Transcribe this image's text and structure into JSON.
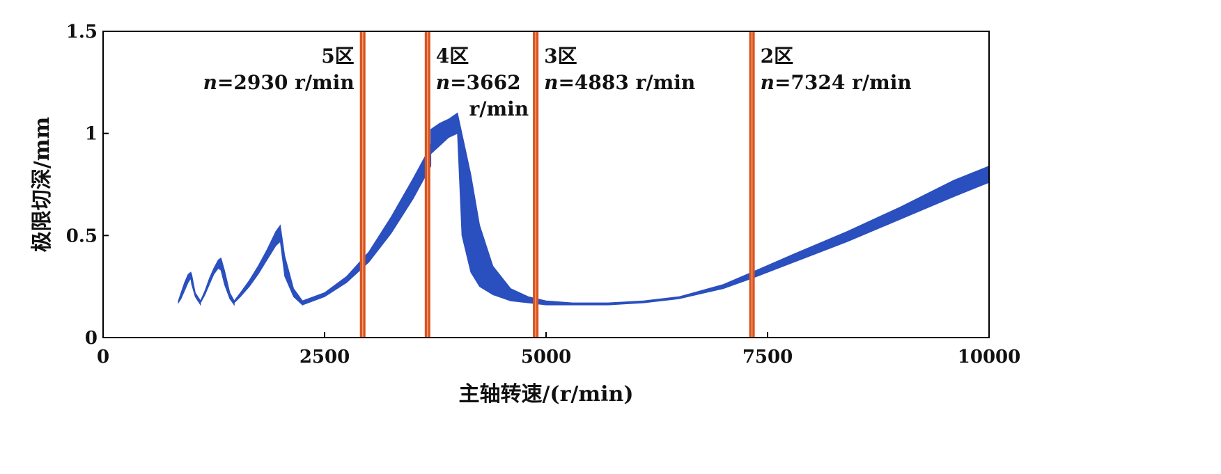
{
  "chart_data": {
    "type": "area",
    "xlabel": "主轴转速/(r/min)",
    "ylabel": "极限切深/mm",
    "xlim": [
      0,
      10000
    ],
    "ylim": [
      0,
      1.5
    ],
    "xticks": [
      0,
      2500,
      5000,
      7500,
      10000
    ],
    "xtick_labels": [
      "0",
      "2500",
      "5000",
      "7500",
      "10000"
    ],
    "yticks": [
      0,
      0.5,
      1,
      1.5
    ],
    "ytick_labels": [
      "0",
      "0.5",
      "1",
      "1.5"
    ],
    "grid": false,
    "band_color": "#2a4fbf",
    "line_color": "#d9531e",
    "series": [
      {
        "type": "band",
        "lobes": [
          {
            "x": [
              850,
              880,
              920,
              960,
              990,
              1000,
              1040,
              1100
            ],
            "lower": [
              0.17,
              0.19,
              0.23,
              0.27,
              0.29,
              0.26,
              0.2,
              0.16
            ],
            "upper": [
              0.18,
              0.22,
              0.27,
              0.31,
              0.32,
              0.31,
              0.22,
              0.18
            ]
          },
          {
            "x": [
              1100,
              1150,
              1200,
              1250,
              1300,
              1330,
              1370,
              1430,
              1480
            ],
            "lower": [
              0.17,
              0.21,
              0.26,
              0.31,
              0.34,
              0.33,
              0.26,
              0.19,
              0.16
            ],
            "upper": [
              0.18,
              0.23,
              0.29,
              0.34,
              0.38,
              0.39,
              0.33,
              0.22,
              0.18
            ]
          },
          {
            "x": [
              1480,
              1550,
              1650,
              1750,
              1850,
              1950,
              2000,
              2050,
              2150,
              2250
            ],
            "lower": [
              0.17,
              0.2,
              0.25,
              0.31,
              0.38,
              0.45,
              0.47,
              0.3,
              0.2,
              0.16
            ],
            "upper": [
              0.18,
              0.22,
              0.28,
              0.35,
              0.43,
              0.52,
              0.55,
              0.4,
              0.24,
              0.18
            ]
          },
          {
            "x": [
              2250,
              2500,
              2750,
              3000,
              3250,
              3500,
              3650,
              3700
            ],
            "lower": [
              0.16,
              0.2,
              0.27,
              0.37,
              0.51,
              0.68,
              0.8,
              0.84
            ],
            "upper": [
              0.18,
              0.22,
              0.3,
              0.42,
              0.59,
              0.78,
              0.9,
              0.95
            ]
          },
          {
            "x": [
              3700,
              3800,
              3900,
              4000,
              4050,
              4150,
              4250,
              4400,
              4600,
              4800,
              5000,
              5300,
              5700,
              6100,
              6500,
              7000,
              7324,
              7800,
              8400,
              9000,
              9600,
              10000
            ],
            "lower": [
              0.9,
              0.94,
              0.98,
              1.0,
              0.5,
              0.32,
              0.25,
              0.21,
              0.18,
              0.17,
              0.16,
              0.16,
              0.16,
              0.17,
              0.19,
              0.24,
              0.29,
              0.37,
              0.47,
              0.58,
              0.69,
              0.76
            ],
            "upper": [
              1.02,
              1.05,
              1.07,
              1.1,
              1.0,
              0.8,
              0.55,
              0.35,
              0.24,
              0.2,
              0.18,
              0.17,
              0.17,
              0.18,
              0.2,
              0.26,
              0.32,
              0.41,
              0.52,
              0.64,
              0.77,
              0.84
            ]
          }
        ]
      }
    ],
    "vlines": [
      {
        "x": 2930,
        "zone": "5区",
        "n_label": "n",
        "eq": "=2930 r/min",
        "eq2": ""
      },
      {
        "x": 3662,
        "zone": "4区",
        "n_label": "n",
        "eq": "=3662",
        "eq2": "r/min"
      },
      {
        "x": 4883,
        "zone": "3区",
        "n_label": "n",
        "eq": "=4883 r/min",
        "eq2": ""
      },
      {
        "x": 7324,
        "zone": "2区",
        "n_label": "n",
        "eq": "=7324 r/min",
        "eq2": ""
      }
    ]
  }
}
